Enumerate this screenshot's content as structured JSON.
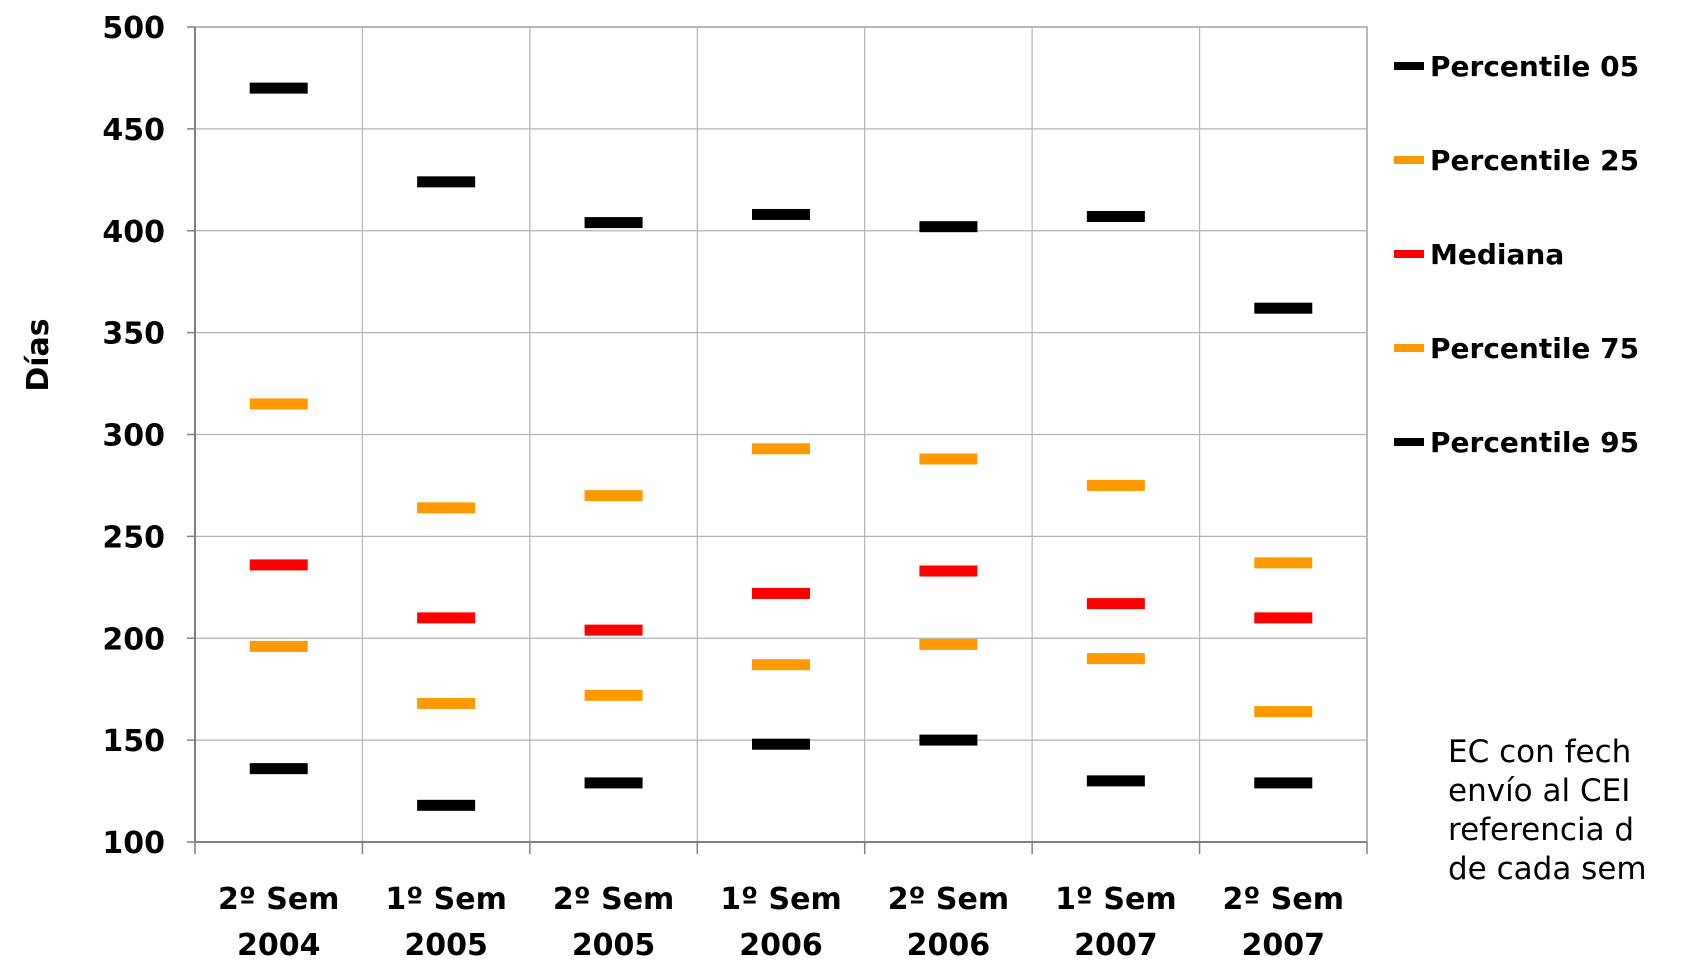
{
  "chart_data": {
    "type": "scatter",
    "ylabel": "Días",
    "xlabel": "",
    "ylim": [
      100,
      500
    ],
    "yticks": [
      "100",
      "150",
      "200",
      "250",
      "300",
      "350",
      "400",
      "450",
      "500"
    ],
    "grid": true,
    "legend_position": "right",
    "categories": [
      [
        "2º Sem",
        "2004"
      ],
      [
        "1º Sem",
        "2005"
      ],
      [
        "2º Sem",
        "2005"
      ],
      [
        "1º Sem",
        "2006"
      ],
      [
        "2º Sem",
        "2006"
      ],
      [
        "1º Sem",
        "2007"
      ],
      [
        "2º Sem",
        "2007"
      ]
    ],
    "series": [
      {
        "name": "Percentile 05",
        "color": "#000000",
        "values": [
          136,
          118,
          129,
          148,
          150,
          130,
          129
        ]
      },
      {
        "name": "Percentile 25",
        "color": "#FF9900",
        "values": [
          196,
          168,
          172,
          187,
          197,
          190,
          164
        ]
      },
      {
        "name": "Mediana",
        "color": "#FF0000",
        "values": [
          236,
          210,
          204,
          222,
          233,
          217,
          210
        ]
      },
      {
        "name": "Percentile 75",
        "color": "#FF9900",
        "values": [
          315,
          264,
          270,
          293,
          288,
          275,
          237
        ]
      },
      {
        "name": "Percentile 95",
        "color": "#000000",
        "values": [
          470,
          424,
          404,
          408,
          402,
          407,
          362
        ]
      }
    ]
  },
  "note_lines": [
    "EC con fech",
    "envío al CEI",
    "referencia d",
    "de cada sem"
  ]
}
